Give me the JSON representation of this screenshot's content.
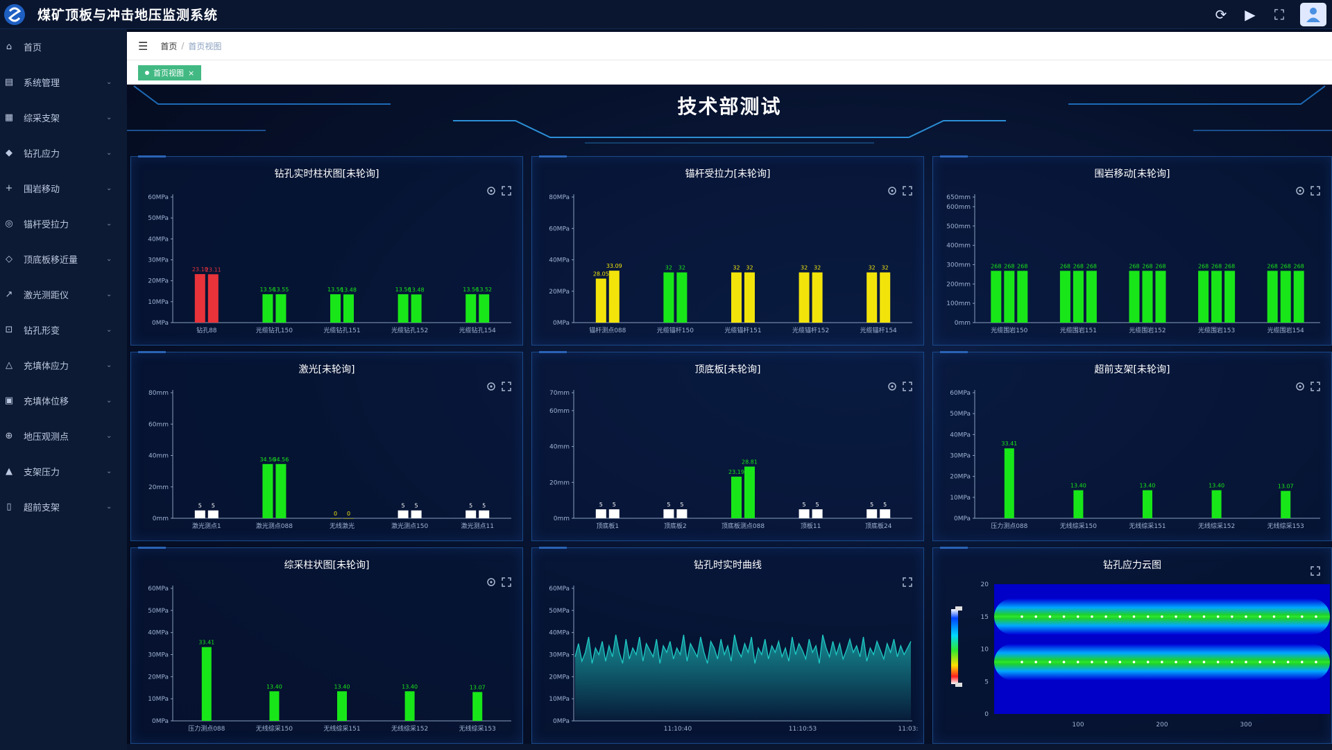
{
  "app": {
    "title": "煤矿顶板与冲击地压监测系统",
    "top_icons": [
      "refresh-icon",
      "play-icon",
      "fullscreen-icon",
      "user-avatar-icon"
    ]
  },
  "sidebar": {
    "items": [
      {
        "label": "首页",
        "icon": "home-icon",
        "has_children": false
      },
      {
        "label": "系统管理",
        "icon": "system-icon",
        "has_children": true
      },
      {
        "label": "综采支架",
        "icon": "support-icon",
        "has_children": true
      },
      {
        "label": "钻孔应力",
        "icon": "drill-icon",
        "has_children": true
      },
      {
        "label": "围岩移动",
        "icon": "move-icon",
        "has_children": true
      },
      {
        "label": "锚杆受拉力",
        "icon": "anchor-icon",
        "has_children": true
      },
      {
        "label": "顶底板移近量",
        "icon": "roof-icon",
        "has_children": true
      },
      {
        "label": "激光测距仪",
        "icon": "laser-icon",
        "has_children": true
      },
      {
        "label": "钻孔形变",
        "icon": "deform-icon",
        "has_children": true
      },
      {
        "label": "充填体应力",
        "icon": "fill-stress-icon",
        "has_children": true
      },
      {
        "label": "充填体位移",
        "icon": "fill-move-icon",
        "has_children": true
      },
      {
        "label": "地压观测点",
        "icon": "observe-icon",
        "has_children": true
      },
      {
        "label": "支架压力",
        "icon": "pressure-icon",
        "has_children": true
      },
      {
        "label": "超前支架",
        "icon": "advance-icon",
        "has_children": true
      }
    ]
  },
  "breadcrumb": {
    "home": "首页",
    "current": "首页视图"
  },
  "tag": {
    "label": "首页视图",
    "close": "×"
  },
  "dashboard": {
    "title": "技术部测试"
  },
  "colors": {
    "red": "#e8333b",
    "green": "#19e619",
    "yellow": "#f2e40b",
    "white": "#ffffff",
    "cyan": "#1ec9c4"
  },
  "panels": [
    {
      "title": "钻孔实时柱状图[未轮询]"
    },
    {
      "title": "锚杆受拉力[未轮询]"
    },
    {
      "title": "围岩移动[未轮询]"
    },
    {
      "title": "激光[未轮询]"
    },
    {
      "title": "顶底板[未轮询]"
    },
    {
      "title": "超前支架[未轮询]"
    },
    {
      "title": "综采柱状图[未轮询]"
    },
    {
      "title": "钻孔时实时曲线"
    },
    {
      "title": "钻孔应力云图"
    }
  ],
  "chart_data": [
    {
      "type": "bar",
      "title": "钻孔实时柱状图[未轮询]",
      "ylim": [
        0,
        60
      ],
      "yticks": [
        "0MPa",
        "10MPa",
        "20MPa",
        "30MPa",
        "40MPa",
        "50MPa",
        "60MPa"
      ],
      "categories": [
        "钻孔88",
        "光缆钻孔150",
        "光缆钻孔151",
        "光缆钻孔152",
        "光缆钻孔154"
      ],
      "colors": [
        "red",
        "green",
        "green",
        "green",
        "green"
      ],
      "series": [
        {
          "values": [
            23.18,
            13.56,
            13.56,
            13.56,
            13.56
          ]
        },
        {
          "values": [
            23.11,
            13.55,
            13.48,
            13.48,
            13.52
          ]
        }
      ],
      "labels": [
        [
          "23.18",
          "23.11"
        ],
        [
          "13.56",
          "13.55"
        ],
        [
          "13.56",
          "13.48"
        ],
        [
          "13.56",
          "13.48"
        ],
        [
          "13.56",
          "13.52"
        ]
      ]
    },
    {
      "type": "bar",
      "title": "锚杆受拉力[未轮询]",
      "ylim": [
        0,
        80
      ],
      "yticks": [
        "0MPa",
        "20MPa",
        "40MPa",
        "60MPa",
        "80MPa"
      ],
      "categories": [
        "锚杆测点088",
        "光缆锚杆150",
        "光缆锚杆151",
        "光缆锚杆152",
        "光缆锚杆154"
      ],
      "colors": [
        "yellow",
        "green",
        "yellow",
        "yellow",
        "yellow"
      ],
      "series": [
        {
          "values": [
            28.05,
            32,
            32,
            32,
            32
          ]
        },
        {
          "values": [
            33.09,
            32,
            32,
            32,
            32
          ]
        }
      ],
      "labels": [
        [
          "28.05",
          "33.09"
        ],
        [
          "32",
          "32"
        ],
        [
          "32",
          "32"
        ],
        [
          "32",
          "32"
        ],
        [
          "32",
          "32"
        ]
      ]
    },
    {
      "type": "bar",
      "title": "围岩移动[未轮询]",
      "ylim": [
        0,
        650
      ],
      "yticks": [
        "0mm",
        "100mm",
        "200mm",
        "300mm",
        "400mm",
        "500mm",
        "600mm",
        "650mm"
      ],
      "categories": [
        "光缆围岩150",
        "光缆围岩151",
        "光缆围岩152",
        "光缆围岩153",
        "光缆围岩154"
      ],
      "colors": [
        "green",
        "green",
        "green",
        "green",
        "green"
      ],
      "series": [
        {
          "values": [
            268,
            268,
            268,
            268,
            268
          ]
        },
        {
          "values": [
            268,
            268,
            268,
            268,
            268
          ]
        },
        {
          "values": [
            268,
            268,
            268,
            268,
            268
          ]
        }
      ],
      "labels": [
        [
          "268",
          "268",
          "268"
        ],
        [
          "268",
          "268",
          "268"
        ],
        [
          "268",
          "268",
          "268"
        ],
        [
          "268",
          "268",
          "268"
        ],
        [
          "268",
          "268",
          "268"
        ]
      ]
    },
    {
      "type": "bar",
      "title": "激光[未轮询]",
      "ylim": [
        0,
        80
      ],
      "yticks": [
        "0mm",
        "20mm",
        "40mm",
        "60mm",
        "80mm"
      ],
      "categories": [
        "激光测点1",
        "激光测点088",
        "无线激光",
        "激光测点150",
        "激光测点11"
      ],
      "colors": [
        "white",
        "green",
        "yellow",
        "white",
        "white"
      ],
      "series": [
        {
          "values": [
            5,
            34.56,
            0,
            5,
            5
          ]
        },
        {
          "values": [
            5,
            34.56,
            0,
            5,
            5
          ]
        }
      ],
      "labels": [
        [
          "5",
          "5"
        ],
        [
          "34.56",
          "34.56"
        ],
        [
          "0",
          "0"
        ],
        [
          "5",
          "5"
        ],
        [
          "5",
          "5"
        ]
      ]
    },
    {
      "type": "bar",
      "title": "顶底板[未轮询]",
      "ylim": [
        0,
        70
      ],
      "yticks": [
        "0mm",
        "20mm",
        "40mm",
        "60mm",
        "70mm"
      ],
      "categories": [
        "顶底板1",
        "顶底板2",
        "顶底板测点088",
        "顶板11",
        "顶底板24"
      ],
      "colors": [
        "white",
        "white",
        "green",
        "white",
        "white"
      ],
      "series": [
        {
          "values": [
            5,
            5,
            23.19,
            5,
            5
          ]
        },
        {
          "values": [
            5,
            5,
            28.81,
            5,
            5
          ]
        }
      ],
      "labels": [
        [
          "5",
          "5"
        ],
        [
          "5",
          "5"
        ],
        [
          "23.19",
          "28.81"
        ],
        [
          "5",
          "5"
        ],
        [
          "5",
          "5"
        ]
      ]
    },
    {
      "type": "bar",
      "title": "超前支架[未轮询]",
      "ylim": [
        0,
        60
      ],
      "yticks": [
        "0MPa",
        "10MPa",
        "20MPa",
        "30MPa",
        "40MPa",
        "50MPa",
        "60MPa"
      ],
      "categories": [
        "压力测点088",
        "无线综采150",
        "无线综采151",
        "无线综采152",
        "无线综采153"
      ],
      "colors": [
        "green",
        "green",
        "green",
        "green",
        "green"
      ],
      "series": [
        {
          "values": [
            33.41,
            13.4,
            13.4,
            13.4,
            13.07
          ]
        }
      ],
      "labels": [
        [
          "33.41"
        ],
        [
          "13.40"
        ],
        [
          "13.40"
        ],
        [
          "13.40"
        ],
        [
          "13.07"
        ]
      ]
    },
    {
      "type": "bar",
      "title": "综采柱状图[未轮询]",
      "ylim": [
        0,
        60
      ],
      "yticks": [
        "0MPa",
        "10MPa",
        "20MPa",
        "30MPa",
        "40MPa",
        "50MPa",
        "60MPa"
      ],
      "categories": [
        "压力测点088",
        "无线综采150",
        "无线综采151",
        "无线综采152",
        "无线综采153"
      ],
      "colors": [
        "green",
        "green",
        "green",
        "green",
        "green"
      ],
      "series": [
        {
          "values": [
            33.41,
            13.4,
            13.4,
            13.4,
            13.07
          ]
        }
      ],
      "labels": [
        [
          "33.41"
        ],
        [
          "13.40"
        ],
        [
          "13.40"
        ],
        [
          "13.40"
        ],
        [
          "13.07"
        ]
      ]
    },
    {
      "type": "area",
      "title": "钻孔时实时曲线",
      "ylim": [
        0,
        60
      ],
      "yticks": [
        "0MPa",
        "10MPa",
        "20MPa",
        "30MPa",
        "40MPa",
        "50MPa",
        "60MPa"
      ],
      "xticks": [
        "11:10:40",
        "11:10:53",
        "11:03:"
      ],
      "values": [
        29,
        35,
        27,
        31,
        38,
        26,
        33,
        30,
        36,
        27,
        34,
        29,
        39,
        31,
        26,
        37,
        28,
        33,
        30,
        38,
        27,
        35,
        32,
        29,
        37,
        26,
        34,
        31,
        36,
        28,
        33,
        30,
        39,
        27,
        35,
        32,
        29,
        38,
        31,
        26,
        36,
        33,
        28,
        37,
        30,
        34,
        27,
        39,
        32,
        29,
        35,
        31,
        38,
        26,
        33,
        30,
        37,
        28,
        34,
        31,
        36,
        29,
        33,
        27,
        38,
        30,
        35,
        32,
        28,
        37,
        31,
        34,
        26,
        39,
        33,
        29,
        36,
        30,
        35,
        28,
        32,
        37,
        31,
        34,
        29,
        38,
        27,
        33,
        30,
        36,
        32,
        28,
        35,
        31,
        37,
        29,
        34,
        30,
        33,
        36
      ]
    },
    {
      "type": "heatmap",
      "title": "钻孔应力云图",
      "yticks": [
        "0",
        "5",
        "10",
        "15",
        "20"
      ],
      "xticks": [
        "100",
        "200",
        "300"
      ],
      "xlim": [
        0,
        400
      ],
      "ylim": [
        0,
        20
      ],
      "bands": [
        {
          "y": 15,
          "intensity": 1
        },
        {
          "y": 8,
          "intensity": 1
        }
      ]
    }
  ]
}
